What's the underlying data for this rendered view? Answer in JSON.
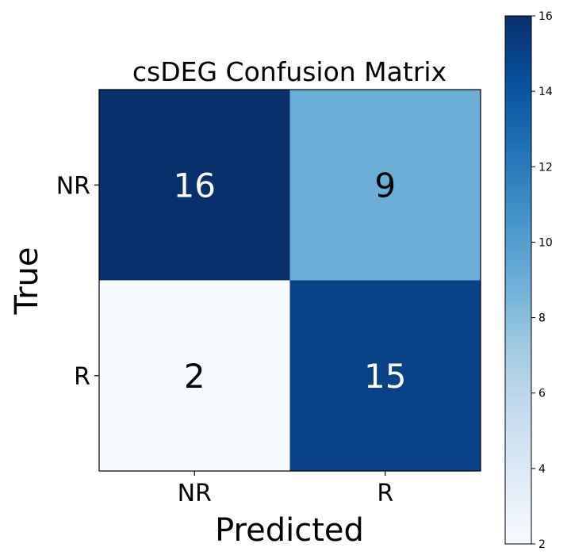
{
  "chart_data": {
    "type": "heatmap",
    "title": "csDEG Confusion Matrix",
    "xlabel": "Predicted",
    "ylabel": "True",
    "x_categories": [
      "NR",
      "R"
    ],
    "y_categories": [
      "NR",
      "R"
    ],
    "values": [
      [
        16,
        9
      ],
      [
        2,
        15
      ]
    ],
    "colormap": "Blues",
    "colorbar": {
      "min": 2,
      "max": 16,
      "ticks": [
        "2",
        "4",
        "6",
        "8",
        "10",
        "12",
        "14",
        "16"
      ]
    },
    "grid": false
  }
}
